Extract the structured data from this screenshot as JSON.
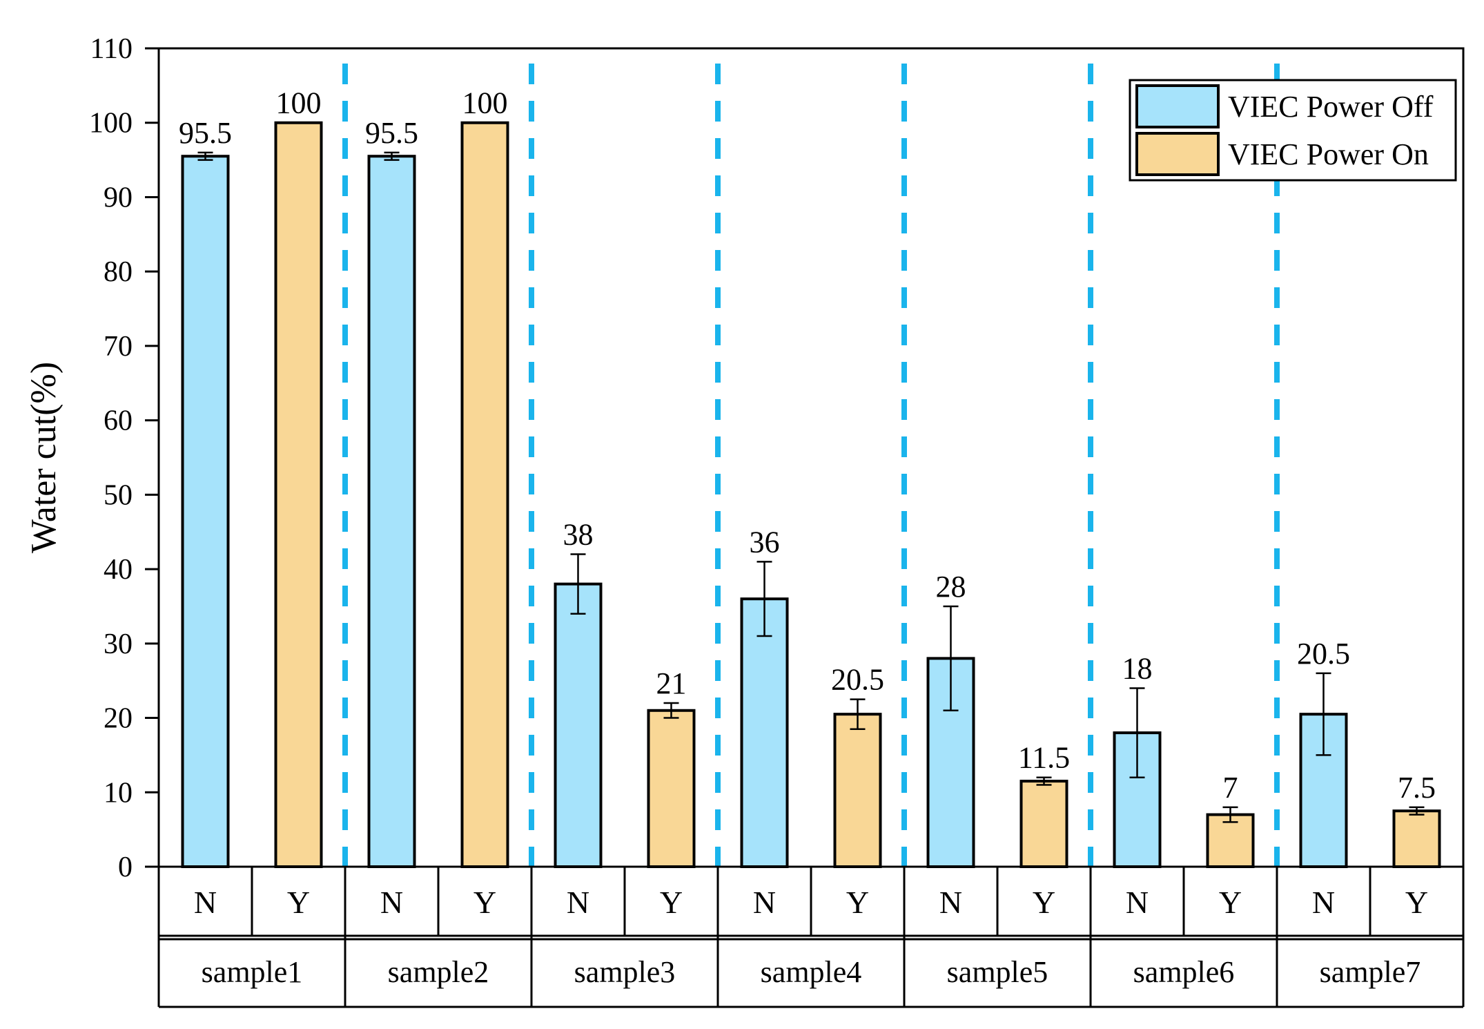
{
  "chart_data": {
    "type": "bar",
    "title": "",
    "ylabel": "Water cut(%)",
    "xlabel": "",
    "ylim": [
      0,
      110
    ],
    "yticks": [
      0,
      10,
      20,
      30,
      40,
      50,
      60,
      70,
      80,
      90,
      100,
      110
    ],
    "categories": [
      "sample1",
      "sample2",
      "sample3",
      "sample4",
      "sample5",
      "sample6",
      "sample7"
    ],
    "sub_labels": [
      "N",
      "Y"
    ],
    "series": [
      {
        "name": "VIEC Power Off",
        "color": "#a6e3fb",
        "values": [
          95.5,
          95.5,
          38,
          36,
          28,
          18,
          20.5
        ],
        "errors": [
          0.5,
          0.5,
          4,
          5,
          7,
          6,
          5.5
        ],
        "value_labels": [
          "95.5",
          "95.5",
          "38",
          "36",
          "28",
          "18",
          "20.5"
        ]
      },
      {
        "name": "VIEC Power On",
        "color": "#f9d796",
        "values": [
          100,
          100,
          21,
          20.5,
          11.5,
          7,
          7.5
        ],
        "errors": [
          0,
          0,
          1,
          2,
          0.5,
          1,
          0.5
        ],
        "value_labels": [
          "100",
          "100",
          "21",
          "20.5",
          "11.5",
          "7",
          "7.5"
        ]
      }
    ],
    "separator_color": "#1ab4ec",
    "legend_position": "top-right",
    "grid": false
  }
}
